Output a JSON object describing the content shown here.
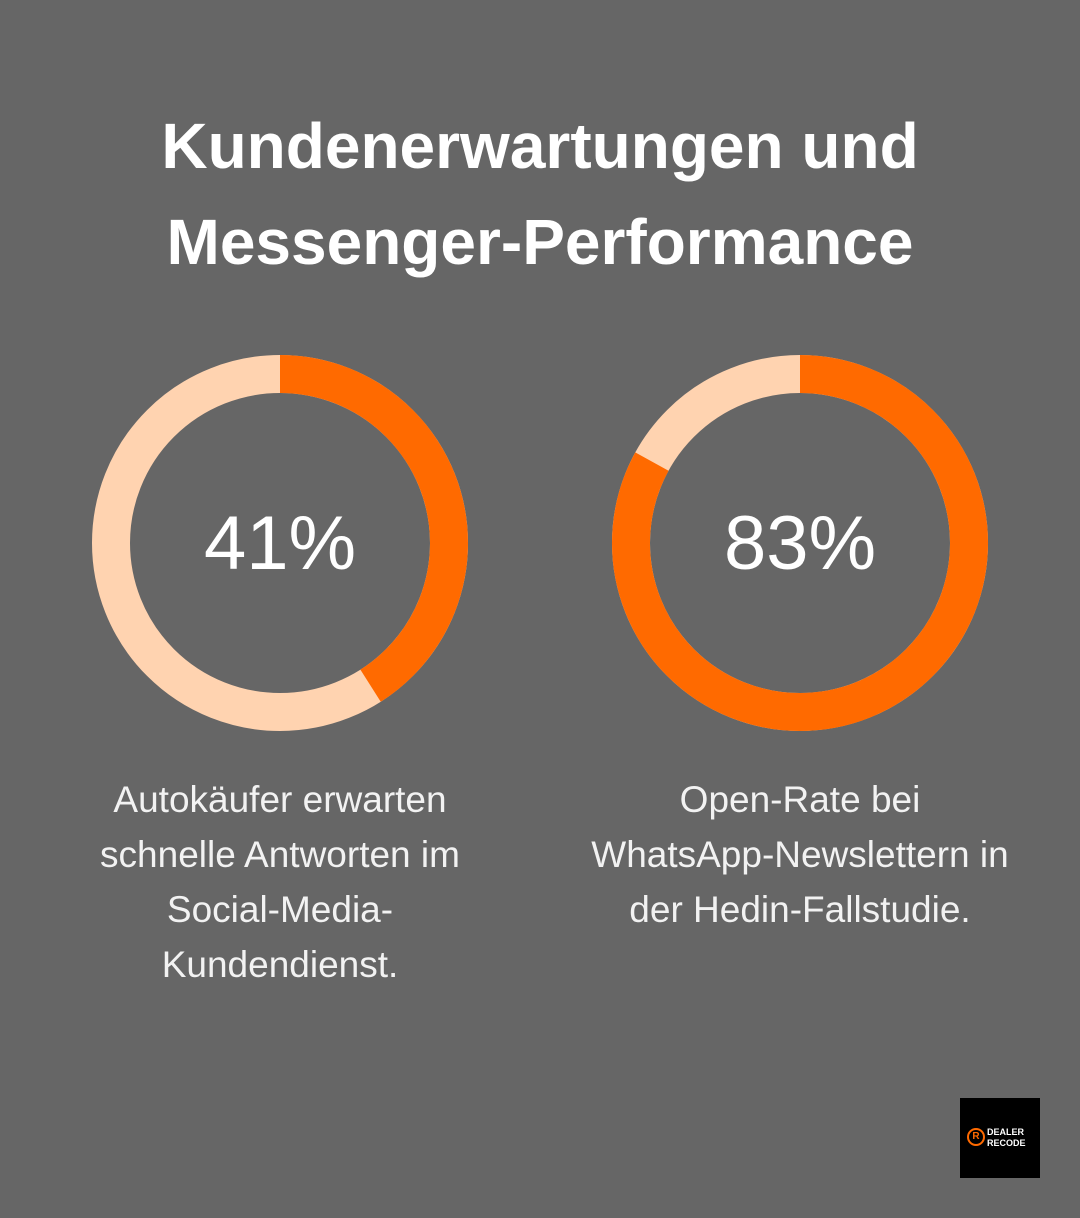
{
  "title": "Kundenerwartungen und Messenger-Performance",
  "chart_data": [
    {
      "type": "donut",
      "values": [
        41
      ],
      "value_labels": [
        "41%"
      ],
      "color": "#ff6a00",
      "track_color": "#ffd3b0",
      "description": "Autokäufer erwarten schnelle Antworten im Social-Media-Kundendienst."
    },
    {
      "type": "donut",
      "values": [
        83
      ],
      "value_labels": [
        "83%"
      ],
      "color": "#ff6a00",
      "track_color": "#ffd3b0",
      "description": "Open-Rate bei WhatsApp-Newslettern in der Hedin-Fallstudie."
    }
  ],
  "logo": {
    "line1": "DEALER",
    "line2": "RECODE"
  }
}
